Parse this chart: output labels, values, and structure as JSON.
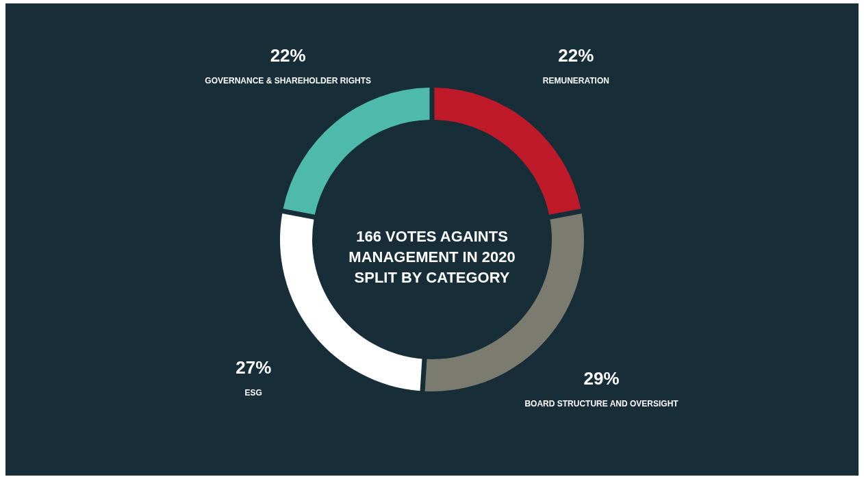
{
  "chart_data": {
    "type": "donut",
    "title": "166 VOTES AGAINTS MANAGEMENT IN 2020 SPLIT BY CATEGORY",
    "categories": [
      "REMUNERATION",
      "BOARD STRUCTURE AND OVERSIGHT",
      "ESG",
      "GOVERNANCE & SHAREHOLDER RIGHTS"
    ],
    "values": [
      22,
      29,
      27,
      22
    ],
    "colors": [
      "#be1a2a",
      "#7b7b6f",
      "#ffffff",
      "#4dbaad"
    ],
    "value_labels": [
      "22%",
      "29%",
      "27%",
      "22%"
    ]
  }
}
